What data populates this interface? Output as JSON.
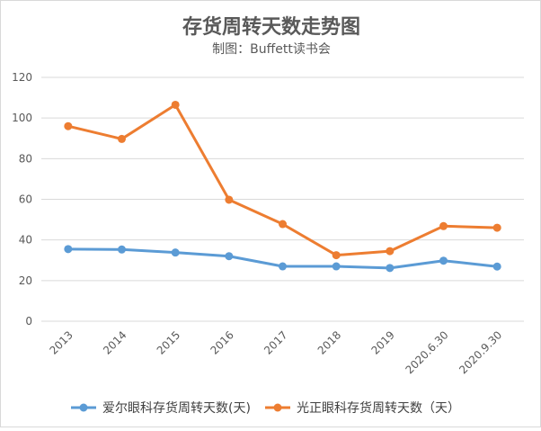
{
  "chart_data": {
    "type": "line",
    "title": "存货周转天数走势图",
    "subtitle": "制图：Buffett读书会",
    "categories": [
      "2013",
      "2014",
      "2015",
      "2016",
      "2017",
      "2018",
      "2019",
      "2020.6.30",
      "2020.9.30"
    ],
    "ylim": [
      0,
      120
    ],
    "yticks": [
      0,
      20,
      40,
      60,
      80,
      100,
      120
    ],
    "grid": true,
    "legend_position": "bottom",
    "series": [
      {
        "name": "爱尔眼科存货周转天数(天)",
        "color": "#5B9BD5",
        "values": [
          35.5,
          35.3,
          33.8,
          32.0,
          27.0,
          27.0,
          26.2,
          29.8,
          26.9
        ]
      },
      {
        "name": "光正眼科存货周转天数（天）",
        "color": "#ED7D31",
        "values": [
          96.0,
          89.7,
          106.5,
          59.8,
          47.8,
          32.5,
          34.5,
          46.8,
          46.0
        ]
      }
    ]
  }
}
